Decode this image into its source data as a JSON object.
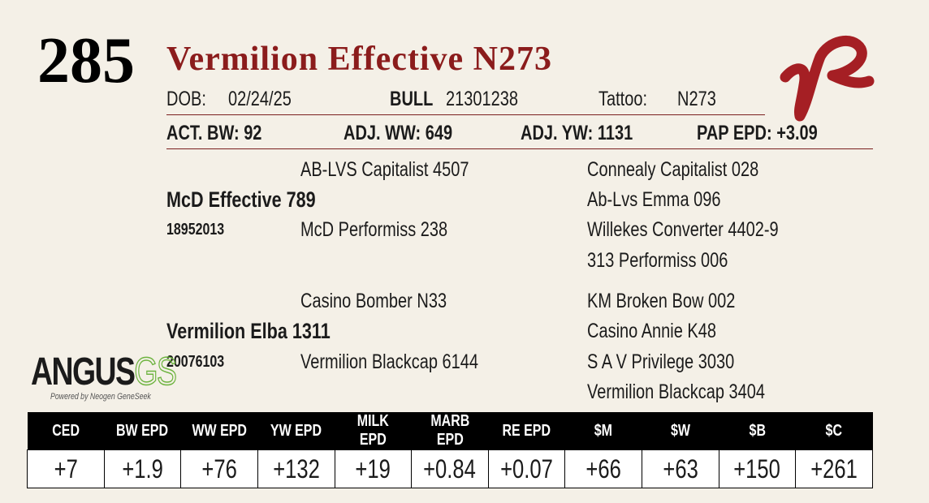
{
  "lot": "285",
  "name": "Vermilion Effective N273",
  "info": [
    {
      "label": "DOB:",
      "value": "02/24/25"
    },
    {
      "label": "BULL",
      "value": "21301238"
    },
    {
      "label": "Tattoo:",
      "value": "N273"
    }
  ],
  "stats": [
    {
      "label": "ACT. BW:",
      "value": "92"
    },
    {
      "label": "ADJ. WW:",
      "value": "649"
    },
    {
      "label": "ADJ. YW:",
      "value": "1131"
    },
    {
      "label": "PAP EPD:",
      "value": "+3.09"
    }
  ],
  "pedigree": {
    "sire": {
      "name": "McD Effective 789",
      "reg": "18952013",
      "sire": "AB-LVS Capitalist 4507",
      "dam": "McD Performiss 238",
      "grandparents": [
        "Connealy Capitalist 028",
        "Ab-Lvs Emma 096",
        "Willekes Converter 4402-9",
        "313 Performiss 006"
      ]
    },
    "dam": {
      "name": "Vermilion Elba 1311",
      "reg": "20076103",
      "sire": "Casino Bomber N33",
      "dam": "Vermilion Blackcap 6144",
      "grandparents": [
        "KM Broken Bow 002",
        "Casino Annie K48",
        "S A V Privilege 3030",
        "Vermilion Blackcap 3404"
      ]
    }
  },
  "logo": {
    "text": "ANGUS",
    "suffix": "GS",
    "tagline": "Powered by Neogen GeneSeek"
  },
  "epd": {
    "headers": [
      "CED",
      "BW EPD",
      "WW EPD",
      "YW EPD",
      "MILK EPD",
      "MARB EPD",
      "RE EPD",
      "$M",
      "$W",
      "$B",
      "$C"
    ],
    "values": [
      "+7",
      "+1.9",
      "+76",
      "+132",
      "+19",
      "+0.84",
      "+0.07",
      "+66",
      "+63",
      "+150",
      "+261"
    ]
  }
}
